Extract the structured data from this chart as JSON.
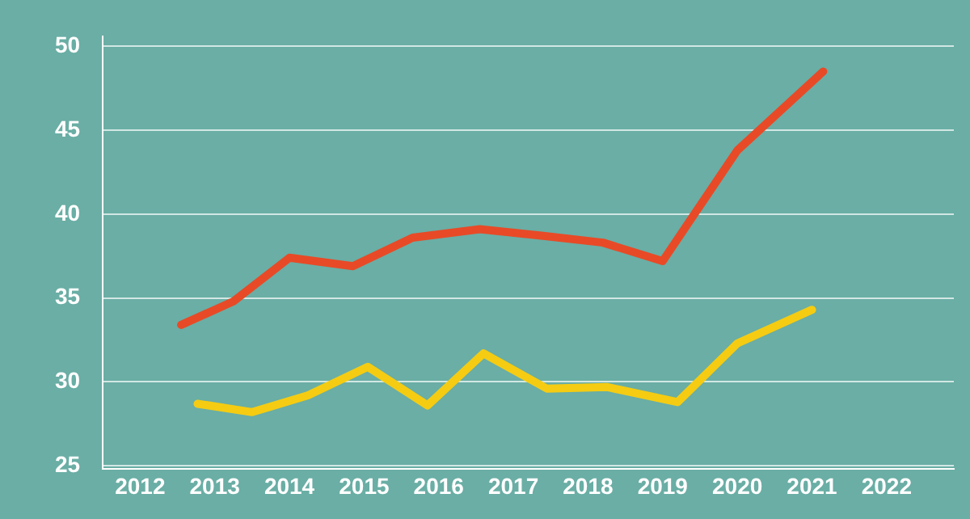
{
  "chart_data": {
    "type": "line",
    "xlim": [
      2011.5,
      2022.9
    ],
    "xticks": [
      2012,
      2013,
      2014,
      2015,
      2016,
      2017,
      2018,
      2019,
      2020,
      2021,
      2022
    ],
    "ylim": [
      24.8,
      50.6
    ],
    "yticks": [
      25,
      30,
      35,
      40,
      45,
      50
    ],
    "grid": "y",
    "legend": false,
    "marker": "none",
    "line_style": "solid",
    "series": [
      {
        "color": "#e84a27",
        "x": [
          2012.55,
          2013.25,
          2014.0,
          2014.85,
          2015.65,
          2016.55,
          2017.4,
          2018.2,
          2019.0,
          2020.0,
          2021.15
        ],
        "values": [
          33.4,
          34.8,
          37.4,
          36.9,
          38.6,
          39.1,
          38.7,
          38.3,
          37.2,
          43.8,
          48.5
        ]
      },
      {
        "color": "#f5cc12",
        "x": [
          2012.77,
          2013.5,
          2014.25,
          2015.05,
          2015.85,
          2016.6,
          2017.45,
          2018.25,
          2019.2,
          2020.0,
          2021.0
        ],
        "values": [
          28.7,
          28.2,
          29.2,
          30.9,
          28.6,
          31.7,
          29.6,
          29.7,
          28.8,
          32.3,
          34.3
        ]
      }
    ]
  }
}
